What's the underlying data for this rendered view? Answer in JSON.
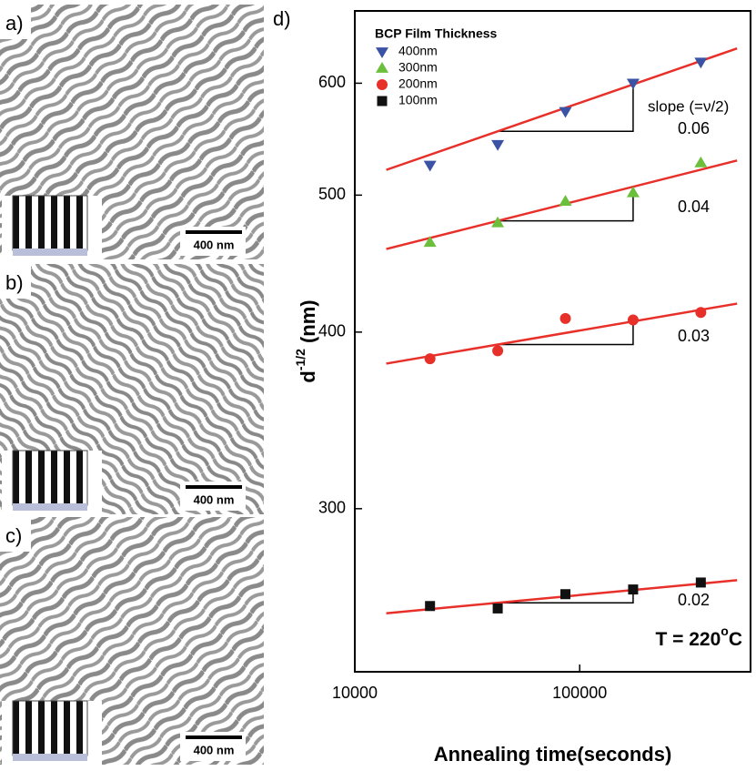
{
  "panels": [
    {
      "label": "a)",
      "scale_bar": "400 nm"
    },
    {
      "label": "b)",
      "scale_bar": "400 nm"
    },
    {
      "label": "c)",
      "scale_bar": "400 nm"
    }
  ],
  "chart_data": {
    "type": "scatter",
    "panel_label": "d)",
    "x_label": "Annealing time(seconds)",
    "y_label": "d",
    "y_label_sup": "-1/2",
    "y_label_unit": "(nm)",
    "x_log": true,
    "y_log": true,
    "xlim": [
      10000,
      575000
    ],
    "ylim": [
      230,
      675
    ],
    "xticks": [
      10000,
      100000
    ],
    "yticks": [
      300,
      400,
      500,
      600
    ],
    "legend_title": "BCP Film Thickness",
    "legend": "upper left",
    "x": [
      21600,
      43200,
      86400,
      172800,
      345600
    ],
    "series": [
      {
        "name": "400nm",
        "color": "#3a53a4",
        "marker": "triangle-down",
        "values": [
          525,
          543,
          573,
          600,
          621
        ],
        "fit_x": [
          13800,
          501000
        ],
        "fit_y": [
          521,
          635
        ]
      },
      {
        "name": "300nm",
        "color": "#6cbf3a",
        "marker": "triangle-up",
        "values": [
          463,
          478,
          495,
          502,
          527
        ],
        "fit_x": [
          13800,
          501000
        ],
        "fit_y": [
          458,
          529
        ]
      },
      {
        "name": "200nm",
        "color": "#e8302a",
        "marker": "circle",
        "values": [
          383,
          388,
          409,
          408,
          413
        ],
        "fit_x": [
          13800,
          501000
        ],
        "fit_y": [
          380,
          419
        ]
      },
      {
        "name": "100nm",
        "color": "#111111",
        "marker": "square",
        "values": [
          256,
          255,
          261,
          263,
          266
        ],
        "fit_x": [
          13800,
          501000
        ],
        "fit_y": [
          253,
          267
        ]
      }
    ],
    "fit_color": "#e8302a",
    "annotations": [
      "slope (=ν/2)",
      "0.06",
      "0.04",
      "0.03",
      "0.02"
    ],
    "temperature": {
      "text": "T = 220",
      "sup": "o",
      "unit": "C"
    }
  }
}
